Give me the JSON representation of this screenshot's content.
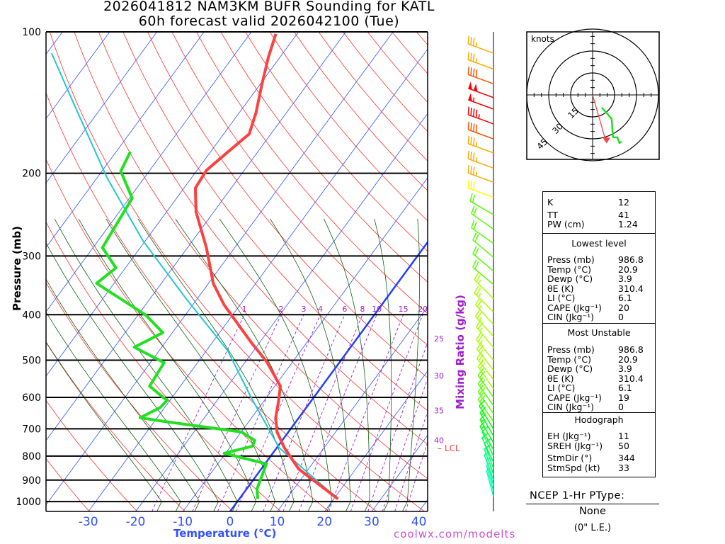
{
  "title": {
    "line1": "2026041812 NAM3KM BUFR Sounding for KATL",
    "line2": "60h forecast valid 2026042100 (Tue)"
  },
  "footer": {
    "credit": "coolwx.com/modelts"
  },
  "colors": {
    "temperature": "#ff4040",
    "dewpoint": "#20e020",
    "parcel": "#20c8d0",
    "isotherm": "#3050ff",
    "zero_isotherm": "#2040ff",
    "dry_adiabat": "#ff3030",
    "moist_adiabat": "#106010",
    "mixing_ratio": "#a020d0",
    "credit": "#d050d0"
  },
  "chart_data": {
    "type": "line",
    "title": "2026041812 NAM3KM BUFR Sounding for KATL",
    "xlabel": "Temperature (°C)",
    "ylabel": "Pressure (mb)",
    "y2label": "Mixing Ratio (g/kg)",
    "x_ticks": [
      -30,
      -20,
      -10,
      0,
      10,
      20,
      30,
      40
    ],
    "y_ticks": [
      100,
      200,
      300,
      400,
      500,
      600,
      700,
      800,
      900,
      1000
    ],
    "ylim": [
      1050,
      100
    ],
    "y_scale": "log",
    "skew": true,
    "mixing_ratio_labels": [
      1,
      2,
      3,
      4,
      6,
      8,
      10,
      15,
      20,
      25,
      30,
      35,
      40
    ],
    "lcl_label": "LCL",
    "lcl_pressure": 768,
    "series": [
      {
        "name": "Temperature",
        "points": [
          [
            987,
            20.9
          ],
          [
            852,
            7.9
          ],
          [
            768,
            1.6
          ],
          [
            711,
            -2.4
          ],
          [
            663,
            -4.9
          ],
          [
            613,
            -6.8
          ],
          [
            568,
            -8.8
          ],
          [
            503,
            -15.6
          ],
          [
            461,
            -21.4
          ],
          [
            430,
            -25.8
          ],
          [
            381,
            -33.4
          ],
          [
            343,
            -39
          ],
          [
            288,
            -46
          ],
          [
            242,
            -53.7
          ],
          [
            215,
            -57.6
          ],
          [
            197,
            -58
          ],
          [
            180,
            -56.3
          ],
          [
            165,
            -54.6
          ],
          [
            149,
            -56.4
          ],
          [
            130,
            -59.5
          ],
          [
            113,
            -62.5
          ],
          [
            101,
            -64.5
          ]
        ]
      },
      {
        "name": "Dewpoint",
        "points": [
          [
            987,
            3.9
          ],
          [
            939,
            2.2
          ],
          [
            831,
            0.3
          ],
          [
            789,
            -10.3
          ],
          [
            762,
            -5.4
          ],
          [
            741,
            -5.8
          ],
          [
            711,
            -9.9
          ],
          [
            675,
            -28
          ],
          [
            663,
            -33.6
          ],
          [
            630,
            -30.9
          ],
          [
            609,
            -30.6
          ],
          [
            568,
            -36.5
          ],
          [
            506,
            -37.1
          ],
          [
            469,
            -45.8
          ],
          [
            437,
            -42
          ],
          [
            401,
            -48.3
          ],
          [
            343,
            -63.7
          ],
          [
            318,
            -62
          ],
          [
            288,
            -68
          ],
          [
            226,
            -69.4
          ],
          [
            198,
            -76
          ],
          [
            180,
            -77
          ]
        ]
      },
      {
        "name": "Parcel",
        "points": [
          [
            987,
            20.9
          ],
          [
            768,
            0.5
          ],
          [
            602,
            -13.1
          ],
          [
            477,
            -25.5
          ],
          [
            368,
            -42.7
          ],
          [
            278,
            -60.6
          ],
          [
            204,
            -78
          ],
          [
            139,
            -97.6
          ],
          [
            111,
            -109
          ]
        ]
      }
    ],
    "wind_barbs": [
      [
        111,
        290,
        35
      ],
      [
        120,
        290,
        35
      ],
      [
        129,
        290,
        40
      ],
      [
        138,
        290,
        100
      ],
      [
        146,
        290,
        55
      ],
      [
        157,
        290,
        45
      ],
      [
        169,
        290,
        40
      ],
      [
        181,
        290,
        35
      ],
      [
        195,
        290,
        35
      ],
      [
        209,
        290,
        35
      ],
      [
        225,
        290,
        30
      ],
      [
        245,
        300,
        20
      ],
      [
        263,
        305,
        20
      ],
      [
        282,
        305,
        20
      ],
      [
        302,
        310,
        20
      ],
      [
        323,
        310,
        20
      ],
      [
        345,
        310,
        20
      ],
      [
        370,
        315,
        25
      ],
      [
        395,
        315,
        25
      ],
      [
        420,
        318,
        25
      ],
      [
        445,
        318,
        25
      ],
      [
        470,
        320,
        25
      ],
      [
        500,
        320,
        25
      ],
      [
        525,
        322,
        25
      ],
      [
        550,
        322,
        25
      ],
      [
        575,
        325,
        25
      ],
      [
        600,
        325,
        20
      ],
      [
        625,
        325,
        20
      ],
      [
        650,
        325,
        20
      ],
      [
        675,
        325,
        20
      ],
      [
        700,
        328,
        15
      ],
      [
        725,
        330,
        15
      ],
      [
        750,
        330,
        15
      ],
      [
        775,
        330,
        15
      ],
      [
        800,
        335,
        10
      ],
      [
        825,
        335,
        10
      ],
      [
        850,
        340,
        10
      ],
      [
        875,
        340,
        10
      ],
      [
        900,
        340,
        5
      ],
      [
        925,
        345,
        5
      ],
      [
        950,
        345,
        5
      ],
      [
        975,
        345,
        5
      ]
    ],
    "hodograph": {
      "units_label": "knots",
      "rings": [
        15,
        30,
        45
      ],
      "points_uv": [
        [
          6.3,
          -8.7
        ],
        [
          10.6,
          -13.5
        ],
        [
          13,
          -16.4
        ],
        [
          13.5,
          -23.2
        ],
        [
          14,
          -29
        ],
        [
          16.9,
          -29
        ],
        [
          18.4,
          -32.9
        ],
        [
          19.8,
          -31.9
        ]
      ]
    }
  },
  "stats": {
    "indices": [
      {
        "label": "K",
        "value": "12"
      },
      {
        "label": "TT",
        "value": "41"
      },
      {
        "label": "PW (cm)",
        "value": "1.24"
      }
    ],
    "lowest": {
      "header": "Lowest level",
      "rows": [
        {
          "label": "Press (mb)",
          "value": "986.8"
        },
        {
          "label": "Temp (°C)",
          "value": "20.9"
        },
        {
          "label": "Dewp (°C)",
          "value": "3.9"
        },
        {
          "label": "θE (K)",
          "value": "310.4"
        },
        {
          "label": "LI (°C)",
          "value": "6.1"
        },
        {
          "label": "CAPE (Jkg⁻¹)",
          "value": "20"
        },
        {
          "label": "CIN (Jkg⁻¹)",
          "value": "0"
        }
      ]
    },
    "unstable": {
      "header": "Most Unstable",
      "rows": [
        {
          "label": "Press (mb)",
          "value": "986.8"
        },
        {
          "label": "Temp (°C)",
          "value": "20.9"
        },
        {
          "label": "Dewp (°C)",
          "value": "3.9"
        },
        {
          "label": "θE (K)",
          "value": "310.4"
        },
        {
          "label": "LI (°C)",
          "value": "6.1"
        },
        {
          "label": "CAPE (Jkg⁻¹)",
          "value": "19"
        },
        {
          "label": "CIN (Jkg⁻¹)",
          "value": "0"
        }
      ]
    },
    "hodograph": {
      "header": "Hodograph",
      "rows": [
        {
          "label": "EH (Jkg⁻¹)",
          "value": "11"
        },
        {
          "label": "SREH (Jkg⁻¹)",
          "value": "50"
        },
        {
          "label": "StmDir (°)",
          "value": "344"
        },
        {
          "label": "StmSpd (kt)",
          "value": "33"
        }
      ]
    }
  },
  "ptype": {
    "header": "NCEP 1-Hr PType:",
    "value": "None",
    "accum": "(0\" L.E.)"
  }
}
